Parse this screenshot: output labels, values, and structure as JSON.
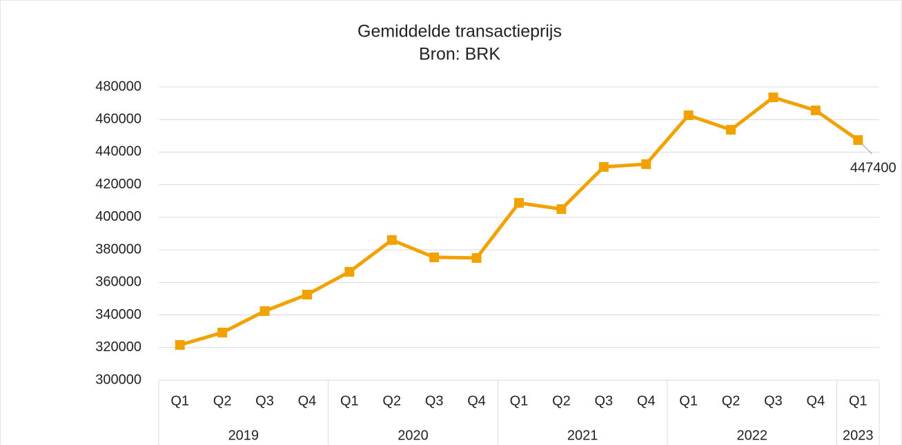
{
  "chart_data": {
    "type": "line",
    "title": "Gemiddelde transactieprijs",
    "subtitle": "Bron: BRK",
    "categories": [
      "Q1",
      "Q2",
      "Q3",
      "Q4",
      "Q1",
      "Q2",
      "Q3",
      "Q4",
      "Q1",
      "Q2",
      "Q3",
      "Q4",
      "Q1",
      "Q2",
      "Q3",
      "Q4",
      "Q1"
    ],
    "category_groups": [
      {
        "name": "2019",
        "size": 4
      },
      {
        "name": "2020",
        "size": 4
      },
      {
        "name": "2021",
        "size": 4
      },
      {
        "name": "2022",
        "size": 4
      },
      {
        "name": "2023",
        "size": 1
      }
    ],
    "series": [
      {
        "name": "Gemiddelde transactieprijs",
        "color": "#f2a200",
        "values": [
          321600,
          329200,
          342400,
          352500,
          366500,
          386000,
          375400,
          375000,
          408800,
          405000,
          430900,
          432600,
          462600,
          453700,
          473600,
          465600,
          447400
        ]
      }
    ],
    "data_label": "last",
    "ylim": [
      300000,
      480000
    ],
    "yticks": [
      300000,
      320000,
      340000,
      360000,
      380000,
      400000,
      420000,
      440000,
      460000,
      480000
    ],
    "grid": true,
    "legend": false
  }
}
